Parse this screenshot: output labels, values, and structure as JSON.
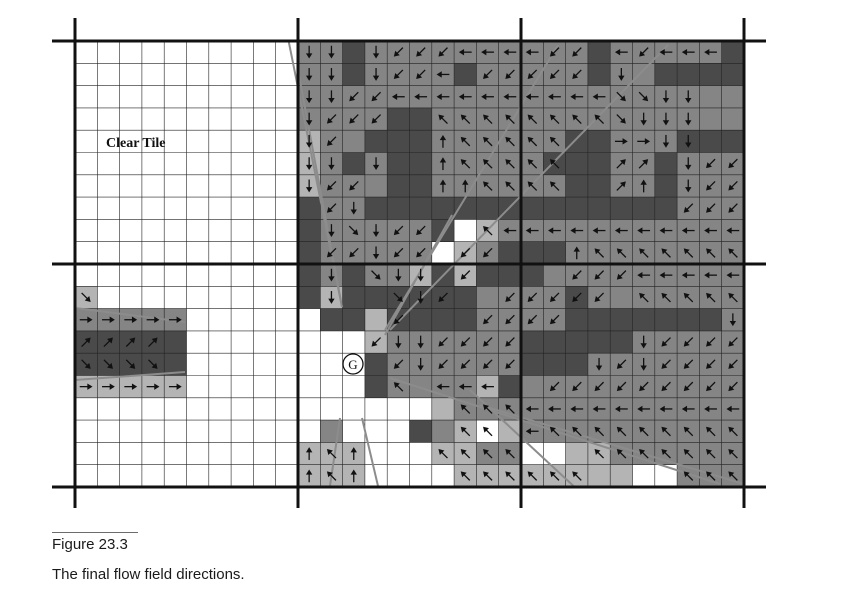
{
  "figure": {
    "label": "Figure 23.3",
    "caption": "The final flow field directions."
  },
  "diagram": {
    "tile_label": "Clear Tile",
    "goal_label": "G",
    "colors": {
      "clear": "#ffffff",
      "light": "#b4b4b4",
      "mid": "#858585",
      "dark": "#4a4a4a",
      "grid_line": "#222222",
      "heavy_line": "#111111",
      "path_line": "#8c8c8c",
      "arrow": "#111111"
    },
    "cell_codes": {
      "W": "clear / passable",
      "L": "light-gray cell",
      "M": "mid-gray cell",
      "D": "dark / impassable cell"
    },
    "arrow_codes": {
      "u": "up",
      "d": "down",
      "l": "left",
      "r": "right",
      "ul": "up-left",
      "ur": "up-right",
      "dl": "down-left",
      "dr": "down-right"
    },
    "rows": [
      "WWWWWWWWWWMMDMMMMMMMMMMDMMMMMDD",
      "WWWWWWWWWWMMDMMMMDMMMMMDMMDDDDD",
      "WWWWWWWWWWMMMMMMMMMMMMMMMMMMMMD",
      "WWWWWWWWWWMMMMDDMMMMMMMMMMMMMMD",
      "WWWWWWWWWWLMMDDDMMMMMMDDMMMDDDD",
      "WWWWWWWWWWLMDMDDMMMMMDDDMMDMMMM",
      "WWWWWWWWWWLMMMDDMMMMMMDDMMDMMMM",
      "WWWWWWWWWWDMMDDDDDDDDDDDDDDMMMM",
      "WWWWWWWWWWDMMMMMDWLMMMMMMMMMMMM",
      "WWWWWWWWWWDMMMMMWLMDDDMMMMMMMMM",
      "WWWWWWWWWWDMDMMLDLDDDMMMMMMMMMM",
      "LWWWWWWWWWDLDDDDDDMMMMDMMMMMMMM",
      "MMMMMWWWWWWDDLDDDDMMMMDDDDDDDMM",
      "DDDDDWWWWWWWWLMMMMMMDDDDDMMMMMM",
      "DDDDDWWWWWWWWDMMMMMMDDDMMMMMMMM",
      "LLLLLWWWWWWWWDMMMMLDMMMMMMMMMMD",
      "WWWWWWWWWWWWWWWWLMMMMMMMMMMMMMM",
      "WWWWWWWWWWWMWWWDMLWLMMMMMMMMMMM",
      "WWWWWWWWWWLLLWWWLLMMWWLLMMMMMMM",
      "WWWWWWWWWWLLLWWWWLLLLLLLLWWMMML"
    ],
    "arrows": [
      "10,0,d",
      "11,0,d",
      "13,0,d",
      "14,0,dl",
      "15,0,dl",
      "16,0,dl",
      "17,0,l",
      "18,0,l",
      "19,0,l",
      "20,0,l",
      "21,0,dl",
      "22,0,dl",
      "24,0,l",
      "25,0,dl",
      "26,0,l",
      "27,0,l",
      "28,0,l",
      "10,1,d",
      "11,1,d",
      "13,1,d",
      "14,1,dl",
      "15,1,dl",
      "16,1,l",
      "18,1,dl",
      "19,1,dl",
      "20,1,dl",
      "21,1,dl",
      "22,1,dl",
      "24,1,d",
      "10,2,d",
      "11,2,d",
      "12,2,dl",
      "13,2,dl",
      "14,2,l",
      "15,2,l",
      "16,2,l",
      "17,2,l",
      "18,2,l",
      "19,2,l",
      "20,2,l",
      "21,2,l",
      "22,2,l",
      "23,2,l",
      "24,2,dr",
      "25,2,dr",
      "26,2,d",
      "27,2,d",
      "10,3,d",
      "11,3,dl",
      "12,3,dl",
      "13,3,dl",
      "16,3,ul",
      "17,3,ul",
      "18,3,ul",
      "19,3,ul",
      "20,3,ul",
      "21,3,ul",
      "22,3,ul",
      "23,3,ul",
      "24,3,dr",
      "25,3,d",
      "26,3,d",
      "27,3,d",
      "10,4,d",
      "11,4,dl",
      "16,4,u",
      "17,4,ul",
      "18,4,ul",
      "19,4,ul",
      "20,4,ul",
      "21,4,ul",
      "24,4,r",
      "25,4,r",
      "26,4,d",
      "27,4,d",
      "10,5,d",
      "11,5,d",
      "13,5,d",
      "16,5,u",
      "17,5,ul",
      "18,5,ul",
      "19,5,ul",
      "20,5,ul",
      "21,5,ul",
      "24,5,ur",
      "25,5,ur",
      "27,5,d",
      "28,5,dl",
      "29,5,dl",
      "30,5,dl",
      "10,6,d",
      "11,6,dl",
      "12,6,dl",
      "16,6,u",
      "17,6,u",
      "18,6,ul",
      "19,6,ul",
      "20,6,ul",
      "21,6,ul",
      "24,6,ur",
      "25,6,u",
      "27,6,d",
      "28,6,dl",
      "29,6,dl",
      "30,6,dl",
      "11,7,dl",
      "12,7,d",
      "27,7,dl",
      "28,7,dl",
      "29,7,dl",
      "30,7,dl",
      "11,8,d",
      "12,8,dr",
      "13,8,d",
      "14,8,dl",
      "15,8,dl",
      "18,8,ul",
      "19,8,l",
      "20,8,l",
      "21,8,l",
      "22,8,l",
      "23,8,l",
      "24,8,l",
      "25,8,l",
      "26,8,l",
      "27,8,l",
      "28,8,l",
      "29,8,l",
      "30,8,l",
      "11,9,dl",
      "12,9,dl",
      "13,9,d",
      "14,9,dl",
      "15,9,dl",
      "17,9,dl",
      "18,9,dl",
      "22,9,u",
      "23,9,ul",
      "24,9,ul",
      "25,9,ul",
      "26,9,ul",
      "27,9,ul",
      "28,9,ul",
      "29,9,ul",
      "30,9,ul",
      "11,10,d",
      "13,10,dr",
      "14,10,d",
      "15,10,d",
      "17,10,dl",
      "22,10,dl",
      "23,10,dl",
      "24,10,dl",
      "25,10,l",
      "26,10,l",
      "27,10,l",
      "28,10,l",
      "29,10,l",
      "30,10,l",
      "0,11,dr",
      "11,11,d",
      "14,11,dr",
      "15,11,d",
      "16,11,dl",
      "19,11,dl",
      "20,11,dl",
      "21,11,dl",
      "22,11,dl",
      "23,11,dl",
      "25,11,ul",
      "26,11,ul",
      "27,11,ul",
      "28,11,ul",
      "29,11,ul",
      "30,11,ul",
      "0,12,r",
      "1,12,r",
      "2,12,r",
      "3,12,r",
      "4,12,r",
      "14,12,dl",
      "18,12,dl",
      "19,12,dl",
      "20,12,dl",
      "21,12,dl",
      "29,12,d",
      "30,12,dl",
      "0,13,ur",
      "1,13,ur",
      "2,13,ur",
      "3,13,ur",
      "13,13,dl",
      "14,13,d",
      "15,13,d",
      "16,13,dl",
      "17,13,dl",
      "18,13,dl",
      "19,13,dl",
      "25,13,d",
      "26,13,dl",
      "27,13,dl",
      "28,13,dl",
      "29,13,dl",
      "30,13,dl",
      "0,14,dr",
      "1,14,dr",
      "2,14,dr",
      "3,14,dr",
      "14,14,dl",
      "15,14,d",
      "16,14,dl",
      "17,14,dl",
      "18,14,dl",
      "19,14,dl",
      "23,14,d",
      "24,14,dl",
      "25,14,d",
      "26,14,dl",
      "27,14,dl",
      "28,14,dl",
      "29,14,dl",
      "30,14,dl",
      "0,15,r",
      "1,15,r",
      "2,15,r",
      "3,15,r",
      "4,15,r",
      "14,15,ul",
      "16,15,l",
      "17,15,l",
      "18,15,l",
      "21,15,dl",
      "22,15,dl",
      "23,15,dl",
      "24,15,dl",
      "25,15,dl",
      "26,15,dl",
      "27,15,dl",
      "28,15,dl",
      "29,15,dl",
      "17,16,ul",
      "18,16,ul",
      "19,16,ul",
      "20,16,l",
      "21,16,l",
      "22,16,l",
      "23,16,l",
      "24,16,l",
      "25,16,l",
      "26,16,l",
      "27,16,l",
      "28,16,l",
      "29,16,l",
      "30,16,l",
      "17,17,ul",
      "18,17,ul",
      "20,17,l",
      "21,17,ul",
      "22,17,ul",
      "23,17,ul",
      "24,17,ul",
      "25,17,ul",
      "26,17,ul",
      "27,17,ul",
      "28,17,ul",
      "29,17,ul",
      "30,17,ul",
      "10,18,u",
      "11,18,ul",
      "12,18,u",
      "16,18,ul",
      "17,18,ul",
      "18,18,ul",
      "19,18,ul",
      "23,18,ul",
      "24,18,ul",
      "25,18,ul",
      "26,18,ul",
      "27,18,ul",
      "28,18,ul",
      "29,18,ul",
      "30,18,ul",
      "10,19,u",
      "11,19,ul",
      "12,19,u",
      "17,19,ul",
      "18,19,ul",
      "19,19,ul",
      "20,19,ul",
      "21,19,ul",
      "22,19,ul",
      "27,19,ul",
      "28,19,ul",
      "29,19,ul",
      "30,19,ul"
    ]
  }
}
